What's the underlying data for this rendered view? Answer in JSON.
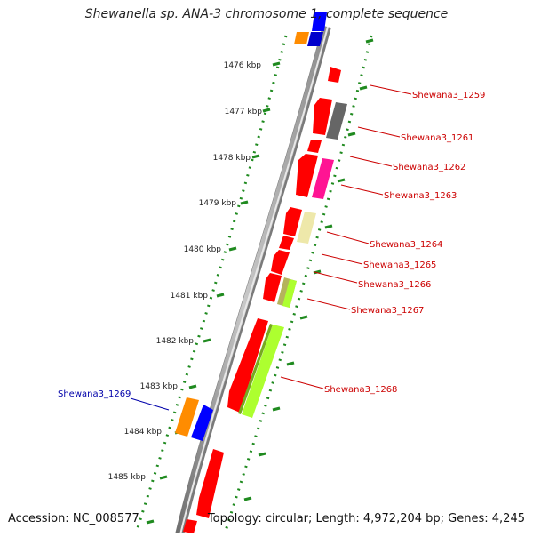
{
  "title": "Shewanella sp. ANA-3 chromosome 1, complete sequence",
  "footer": {
    "accession": "Accession: NC_008577",
    "topology": "Topology: circular; Length: 4,972,204 bp; Genes: 4,245"
  },
  "ticks": [
    "1476 kbp",
    "1477 kbp",
    "1478 kbp",
    "1479 kbp",
    "1480 kbp",
    "1481 kbp",
    "1482 kbp",
    "1483 kbp",
    "1484 kbp",
    "1485 kbp"
  ],
  "gene_labels": [
    {
      "id": "g1259",
      "text": "Shewana3_1259",
      "color": "#cc0000"
    },
    {
      "id": "g1261",
      "text": "Shewana3_1261",
      "color": "#cc0000"
    },
    {
      "id": "g1262",
      "text": "Shewana3_1262",
      "color": "#cc0000"
    },
    {
      "id": "g1263",
      "text": "Shewana3_1263",
      "color": "#cc0000"
    },
    {
      "id": "g1264",
      "text": "Shewana3_1264",
      "color": "#cc0000"
    },
    {
      "id": "g1265",
      "text": "Shewana3_1265",
      "color": "#cc0000"
    },
    {
      "id": "g1266",
      "text": "Shewana3_1266",
      "color": "#cc0000"
    },
    {
      "id": "g1267",
      "text": "Shewana3_1267",
      "color": "#cc0000"
    },
    {
      "id": "g1268",
      "text": "Shewana3_1268",
      "color": "#cc0000"
    },
    {
      "id": "g1269",
      "text": "Shewana3_1269",
      "color": "#0000aa"
    }
  ],
  "colors": {
    "backbone": "#9a9a9a",
    "dotted_track": "#1f8a1f",
    "red_feature": "#ff0000",
    "blue_feature": "#0000ff",
    "orange_feature": "#ff8c00",
    "gray_feature": "#666666",
    "magenta_feature": "#ff1493",
    "pale_yellow_feature": "#eee8aa",
    "olive_feature": "#b5b35c",
    "lime_feature": "#adff2f"
  }
}
